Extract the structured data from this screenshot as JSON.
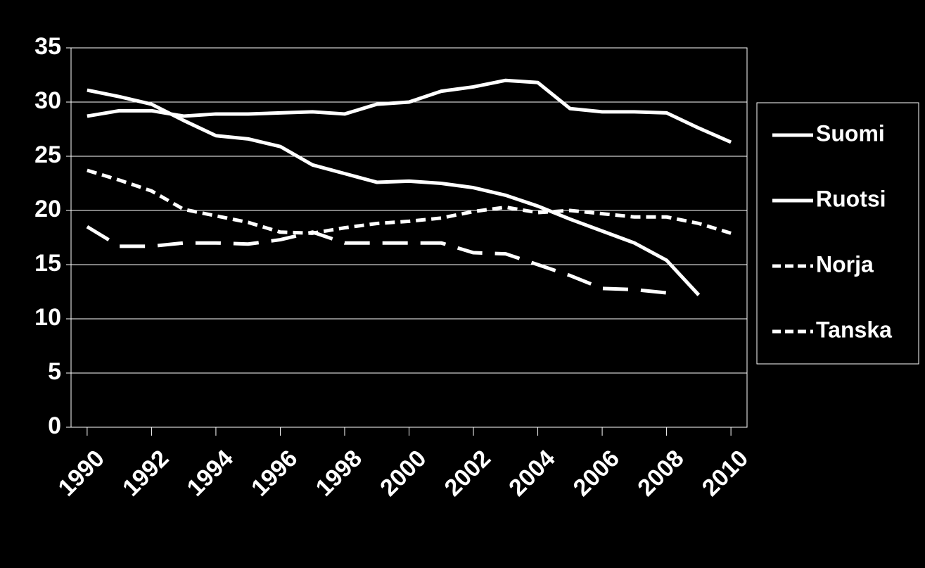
{
  "chart_data": {
    "type": "line",
    "x": [
      1990,
      1991,
      1992,
      1993,
      1994,
      1995,
      1996,
      1997,
      1998,
      1999,
      2000,
      2001,
      2002,
      2003,
      2004,
      2005,
      2006,
      2007,
      2008,
      2009,
      2010
    ],
    "xlim": [
      1989.5,
      2010.5
    ],
    "xticks": [
      1990,
      1992,
      1994,
      1996,
      1998,
      2000,
      2002,
      2004,
      2006,
      2008,
      2010
    ],
    "ylim": [
      0,
      35
    ],
    "yticks": [
      0,
      5,
      10,
      15,
      20,
      25,
      30,
      35
    ],
    "grid": true,
    "legend": "right",
    "series": [
      {
        "name": "Suomi",
        "color": "#ffffff",
        "dash": "solid",
        "values": [
          28.7,
          29.2,
          29.2,
          28.7,
          28.9,
          28.9,
          29.0,
          29.1,
          28.9,
          29.8,
          30.0,
          31.0,
          31.4,
          32.0,
          31.8,
          29.4,
          29.1,
          29.1,
          29.0,
          27.6,
          26.3
        ]
      },
      {
        "name": "Ruotsi",
        "color": "#ffffff",
        "dash": "solid",
        "values": [
          31.1,
          30.5,
          29.8,
          28.3,
          26.9,
          26.6,
          25.9,
          24.2,
          23.4,
          22.6,
          22.7,
          22.5,
          22.1,
          21.4,
          20.4,
          19.2,
          18.1,
          17.0,
          15.4,
          12.2,
          null
        ]
      },
      {
        "name": "Norja",
        "color": "#ffffff",
        "dash": "short",
        "values": [
          23.7,
          22.8,
          21.8,
          20.1,
          19.5,
          18.9,
          18.0,
          17.9,
          18.4,
          18.8,
          19.0,
          19.3,
          19.9,
          20.3,
          19.8,
          20.0,
          19.7,
          19.4,
          19.4,
          18.8,
          17.9
        ]
      },
      {
        "name": "Tanska",
        "color": "#ffffff",
        "dash": "long",
        "values": [
          18.5,
          16.7,
          16.7,
          17.0,
          17.0,
          16.9,
          17.3,
          18.0,
          17.0,
          17.0,
          17.0,
          17.0,
          16.1,
          16.0,
          15.0,
          14.0,
          12.8,
          12.7,
          12.4,
          null,
          null
        ]
      }
    ]
  }
}
